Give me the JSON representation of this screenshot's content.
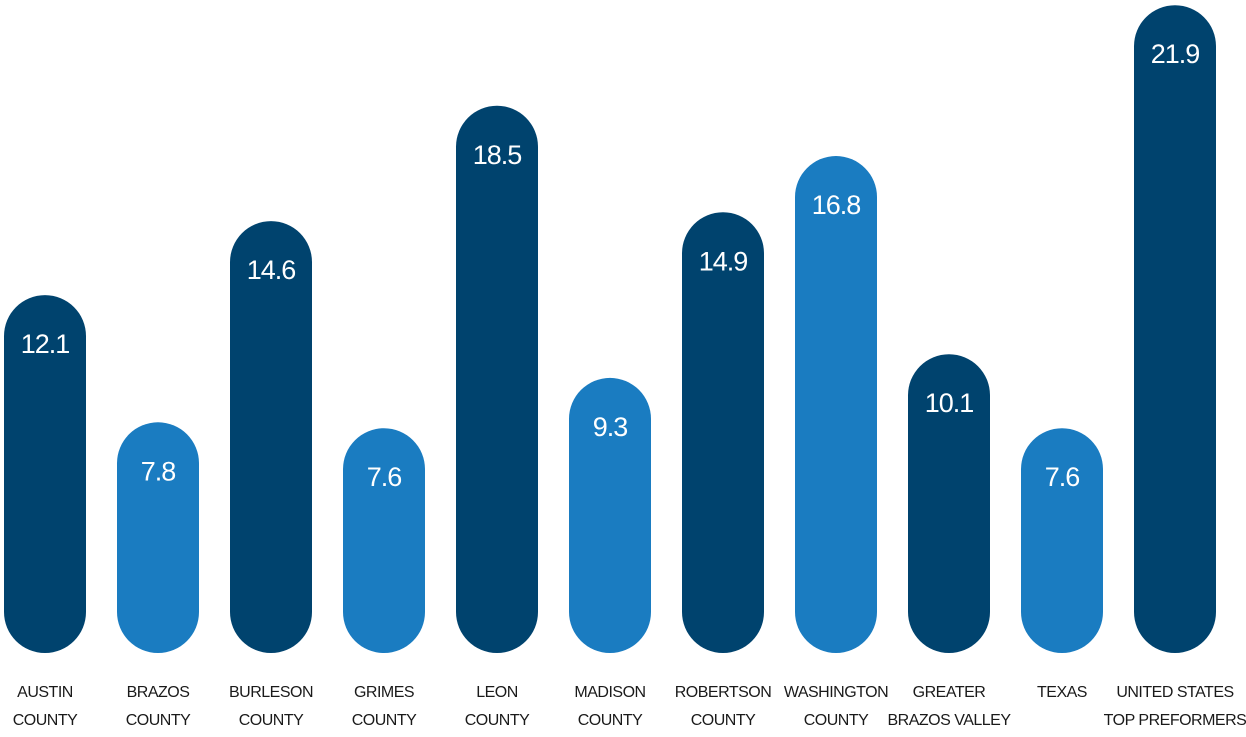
{
  "chart_data": {
    "type": "bar",
    "categories": [
      [
        "AUSTIN",
        "COUNTY"
      ],
      [
        "BRAZOS",
        "COUNTY"
      ],
      [
        "BURLESON",
        "COUNTY"
      ],
      [
        "GRIMES",
        "COUNTY"
      ],
      [
        "LEON",
        "COUNTY"
      ],
      [
        "MADISON",
        "COUNTY"
      ],
      [
        "ROBERTSON",
        "COUNTY"
      ],
      [
        "WASHINGTON",
        "COUNTY"
      ],
      [
        "GREATER",
        "BRAZOS VALLEY"
      ],
      [
        "TEXAS"
      ],
      [
        "UNITED STATES",
        "TOP PREFORMERS"
      ]
    ],
    "values": [
      12.1,
      7.8,
      14.6,
      7.6,
      18.5,
      9.3,
      14.9,
      16.8,
      10.1,
      7.6,
      21.9
    ],
    "value_labels": [
      "12.1",
      "7.8",
      "14.6",
      "7.6",
      "18.5",
      "9.3",
      "14.9",
      "16.8",
      "10.1",
      "7.6",
      "21.9"
    ],
    "bar_colors": [
      "#00436e",
      "#1a7cc1",
      "#00436e",
      "#1a7cc1",
      "#00436e",
      "#1a7cc1",
      "#00436e",
      "#1a7cc1",
      "#00436e",
      "#1a7cc1",
      "#00436e"
    ],
    "colors": {
      "dark_blue": "#00436e",
      "light_blue": "#1a7cc1",
      "value_text": "#ffffff",
      "label_text": "#1a1a1a"
    },
    "title": "",
    "xlabel": "",
    "ylabel": "",
    "grid": false,
    "legend": "none"
  }
}
